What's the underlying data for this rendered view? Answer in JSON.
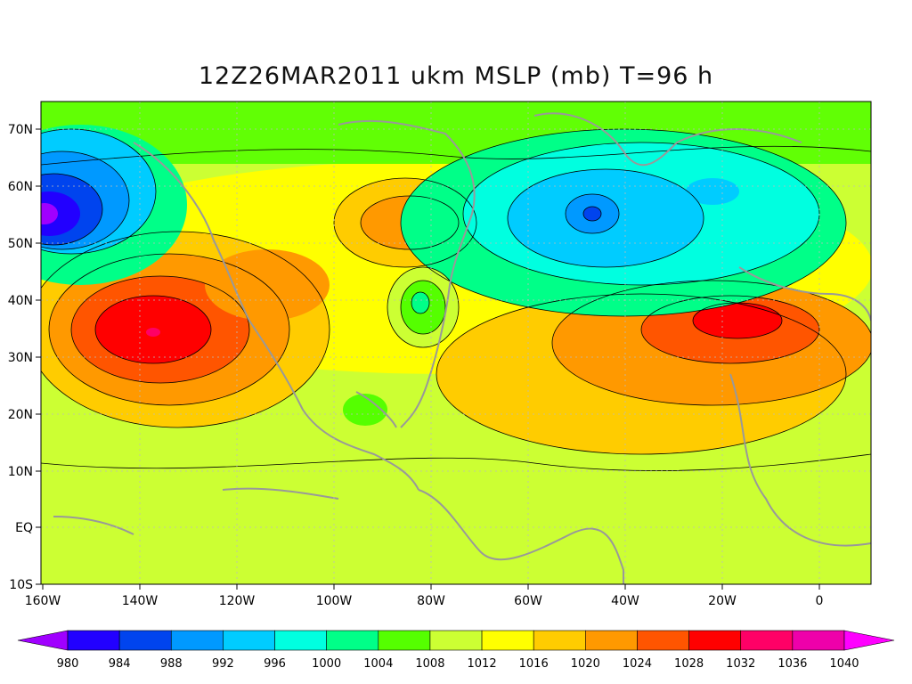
{
  "title": "12Z26MAR2011 ukm MSLP (mb) T=96 h",
  "lat_ticks": [
    "70N",
    "60N",
    "50N",
    "40N",
    "30N",
    "20N",
    "10N",
    "EQ",
    "10S"
  ],
  "lon_ticks": [
    "160W",
    "140W",
    "120W",
    "100W",
    "80W",
    "60W",
    "40W",
    "20W",
    "0"
  ],
  "colorbar": {
    "levels": [
      "980",
      "984",
      "988",
      "992",
      "996",
      "1000",
      "1004",
      "1008",
      "1012",
      "1016",
      "1020",
      "1024",
      "1028",
      "1032",
      "1036",
      "1040"
    ],
    "colors": [
      "#a000ff",
      "#2200ff",
      "#0044ee",
      "#0099ff",
      "#00ccff",
      "#00ffe0",
      "#00ff88",
      "#55ff00",
      "#ccff33",
      "#ffff00",
      "#ffcc00",
      "#ff9900",
      "#ff5500",
      "#ff0000",
      "#ff0066",
      "#ee00aa",
      "#ff00ff"
    ]
  },
  "colors": {
    "background_field": "#ccff33",
    "coastline": "#999999",
    "contour": "#000000"
  }
}
